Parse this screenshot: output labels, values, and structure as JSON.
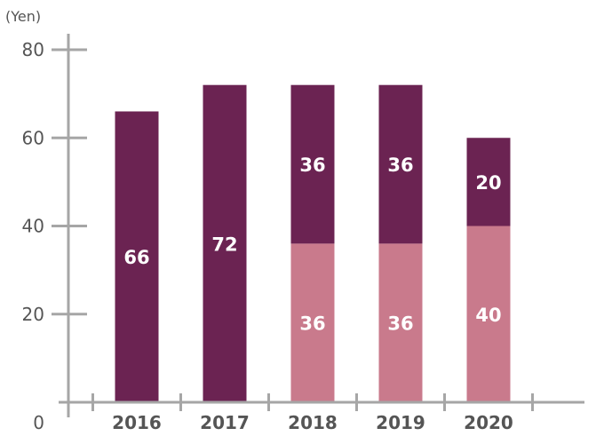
{
  "chart_data": {
    "type": "bar",
    "stacked": true,
    "unit": "(Yen)",
    "categories": [
      "2016",
      "2017",
      "2018",
      "2019",
      "2020"
    ],
    "series": [
      {
        "values": [
          0,
          0,
          36,
          36,
          40
        ],
        "color": "#c97a8c",
        "labels": [
          "",
          "",
          "36",
          "36",
          "40"
        ]
      },
      {
        "values": [
          66,
          72,
          36,
          36,
          20
        ],
        "color": "#6b2352",
        "labels": [
          "66",
          "72",
          "36",
          "36",
          "20"
        ]
      }
    ],
    "ylim": [
      0,
      80
    ],
    "yticks": [
      0,
      20,
      40,
      60,
      80
    ],
    "ytick_labels": [
      "0",
      "20",
      "40",
      "60",
      "80"
    ],
    "grid": false,
    "legend": "none"
  }
}
